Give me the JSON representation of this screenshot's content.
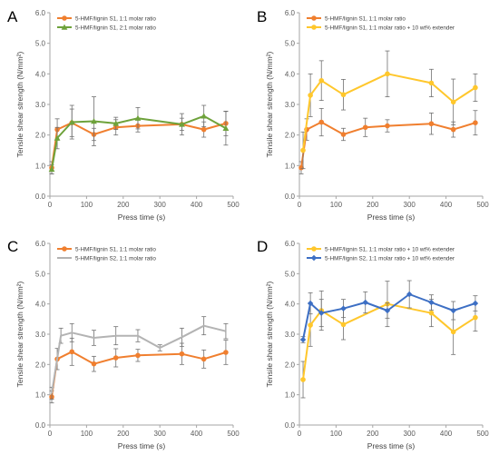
{
  "colors": {
    "orange": "#f07f2f",
    "green": "#6ea23b",
    "yellow": "#ffc72c",
    "gray": "#b3b3b3",
    "blue": "#3d6fc4",
    "errorbar": "#707070",
    "axis": "#a6a6a6",
    "tick_text": "#5a5a5a"
  },
  "chart_data": [
    {
      "panel_label": "A",
      "type": "line",
      "xlabel": "Press time (s)",
      "ylabel": "Tensile shear strength (N/mm²)",
      "xlim": [
        0,
        500
      ],
      "ylim": [
        0,
        6
      ],
      "xticks": [
        "0",
        "100",
        "200",
        "300",
        "400",
        "500"
      ],
      "yticks": [
        "0.0",
        "1.0",
        "2.0",
        "3.0",
        "4.0",
        "5.0",
        "6.0"
      ],
      "grid": false,
      "legend_position": "top-left",
      "series": [
        {
          "name": "5-HMF/lignin S1, 1:1 molar ratio",
          "color_key": "orange",
          "marker": "circle",
          "x": [
            5,
            20,
            60,
            120,
            180,
            240,
            360,
            420,
            480
          ],
          "y": [
            0.93,
            2.18,
            2.4,
            2.02,
            2.25,
            2.3,
            2.35,
            2.18,
            2.38
          ],
          "err": [
            0.2,
            0.35,
            0.45,
            0.2,
            0.25,
            0.2,
            0.35,
            0.25,
            0.4
          ]
        },
        {
          "name": "5-HMF/lignin S1, 2:1 molar ratio",
          "color_key": "green",
          "marker": "triangle",
          "x": [
            5,
            20,
            60,
            120,
            180,
            240,
            360,
            420,
            480
          ],
          "y": [
            0.88,
            1.9,
            2.42,
            2.45,
            2.38,
            2.55,
            2.35,
            2.62,
            2.22
          ],
          "err": [
            0.15,
            0.35,
            0.55,
            0.8,
            0.2,
            0.35,
            0.2,
            0.35,
            0.55
          ]
        }
      ]
    },
    {
      "panel_label": "B",
      "type": "line",
      "xlabel": "Press time (s)",
      "ylabel": "Tensile shear strength (N/mm²)",
      "xlim": [
        0,
        500
      ],
      "ylim": [
        0,
        6
      ],
      "xticks": [
        "0",
        "100",
        "200",
        "300",
        "400",
        "500"
      ],
      "yticks": [
        "0.0",
        "1.0",
        "2.0",
        "3.0",
        "4.0",
        "5.0",
        "6.0"
      ],
      "grid": false,
      "legend_position": "top-left",
      "series": [
        {
          "name": "5-HMF/lignin S1, 1:1 molar ratio",
          "color_key": "orange",
          "marker": "circle",
          "x": [
            5,
            20,
            60,
            120,
            180,
            240,
            360,
            420,
            480
          ],
          "y": [
            0.93,
            2.18,
            2.42,
            2.02,
            2.25,
            2.3,
            2.37,
            2.18,
            2.4
          ],
          "err": [
            0.2,
            0.35,
            0.45,
            0.2,
            0.3,
            0.2,
            0.35,
            0.25,
            0.4
          ]
        },
        {
          "name": "5-HMF/lignin S1, 1:1 molar ratio + 10 wt% extender",
          "color_key": "yellow",
          "marker": "circle",
          "x": [
            10,
            30,
            60,
            120,
            240,
            360,
            420,
            480
          ],
          "y": [
            1.5,
            3.3,
            3.78,
            3.32,
            4.0,
            3.7,
            3.08,
            3.55
          ],
          "err": [
            0.6,
            0.7,
            0.65,
            0.5,
            0.75,
            0.45,
            0.75,
            0.45
          ]
        }
      ]
    },
    {
      "panel_label": "C",
      "type": "line",
      "xlabel": "Press time (s)",
      "ylabel": "Tensile shear strength (N/mm²)",
      "xlim": [
        0,
        500
      ],
      "ylim": [
        0,
        6
      ],
      "xticks": [
        "0",
        "100",
        "200",
        "300",
        "400",
        "500"
      ],
      "yticks": [
        "0.0",
        "1.0",
        "2.0",
        "3.0",
        "4.0",
        "5.0",
        "6.0"
      ],
      "grid": false,
      "legend_position": "top-left",
      "series": [
        {
          "name": "5-HMF/lignin S1, 1:1 molar ratio",
          "color_key": "orange",
          "marker": "circle",
          "x": [
            5,
            20,
            60,
            120,
            180,
            240,
            360,
            420,
            480
          ],
          "y": [
            0.93,
            2.18,
            2.42,
            2.02,
            2.22,
            2.3,
            2.35,
            2.18,
            2.4
          ],
          "err": [
            0.2,
            0.35,
            0.45,
            0.25,
            0.3,
            0.2,
            0.35,
            0.3,
            0.4
          ]
        },
        {
          "name": "5-HMF/lignin S2, 1:1 molar ratio",
          "color_key": "gray",
          "marker": "none",
          "x": [
            5,
            30,
            60,
            120,
            180,
            240,
            300,
            360,
            420,
            480
          ],
          "y": [
            1.05,
            2.95,
            3.05,
            2.88,
            2.95,
            2.95,
            2.55,
            2.9,
            3.28,
            3.1
          ],
          "err": [
            0.2,
            0.25,
            0.3,
            0.25,
            0.3,
            0.2,
            0.1,
            0.3,
            0.3,
            0.25
          ]
        }
      ]
    },
    {
      "panel_label": "D",
      "type": "line",
      "xlabel": "Press time (s)",
      "ylabel": "Tensile shear strength (N/mm²)",
      "xlim": [
        0,
        500
      ],
      "ylim": [
        0,
        6
      ],
      "xticks": [
        "0",
        "100",
        "200",
        "300",
        "400",
        "500"
      ],
      "yticks": [
        "0.0",
        "1.0",
        "2.0",
        "3.0",
        "4.0",
        "5.0",
        "6.0"
      ],
      "grid": false,
      "legend_position": "top-left",
      "series": [
        {
          "name": "5-HMF/lignin S1, 1:1 molar ratio + 10 wt% extender",
          "color_key": "yellow",
          "marker": "circle",
          "x": [
            10,
            30,
            60,
            120,
            240,
            360,
            420,
            480
          ],
          "y": [
            1.5,
            3.3,
            3.78,
            3.32,
            4.0,
            3.7,
            3.08,
            3.55
          ],
          "err": [
            0.6,
            0.7,
            0.65,
            0.5,
            0.75,
            0.45,
            0.75,
            0.45
          ]
        },
        {
          "name": "5-HMF/lignin S2, 1:1 molar ratio + 10 wt% extender",
          "color_key": "blue",
          "marker": "diamond",
          "x": [
            10,
            30,
            60,
            120,
            180,
            240,
            300,
            360,
            420,
            480
          ],
          "y": [
            2.82,
            4.02,
            3.7,
            3.85,
            4.05,
            3.78,
            4.32,
            4.05,
            3.78,
            4.02
          ],
          "err": [
            0.1,
            0.35,
            0.45,
            0.3,
            0.35,
            0.25,
            0.45,
            0.25,
            0.3,
            0.25
          ]
        }
      ]
    }
  ]
}
